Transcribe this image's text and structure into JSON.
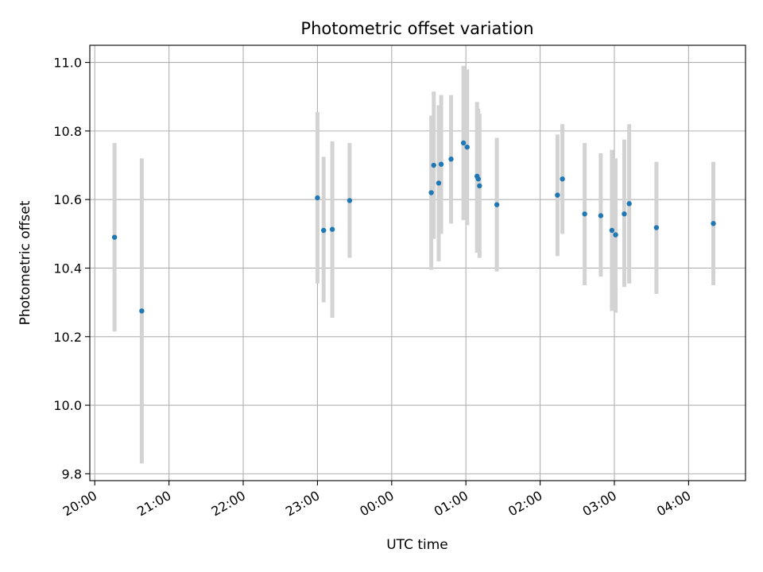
{
  "chart_data": {
    "type": "scatter",
    "title": "Photometric offset variation",
    "xlabel": "UTC time",
    "ylabel": "Photometric offset",
    "x_axis": {
      "ticks": [
        "20:00",
        "21:00",
        "22:00",
        "23:00",
        "00:00",
        "01:00",
        "02:00",
        "03:00",
        "04:00"
      ],
      "range": [
        "19:56",
        "04:46"
      ]
    },
    "y_axis": {
      "ticks": [
        "9.8",
        "10.0",
        "10.2",
        "10.4",
        "10.6",
        "10.8",
        "11.0"
      ],
      "range": [
        9.78,
        11.05
      ]
    },
    "grid": true,
    "colors": {
      "point": "#1f77b4",
      "errorbar": "#d3d3d3"
    },
    "points": [
      {
        "t": "20:16",
        "y": 10.49,
        "lo": 10.215,
        "hi": 10.765
      },
      {
        "t": "20:38",
        "y": 10.275,
        "lo": 9.83,
        "hi": 10.72
      },
      {
        "t": "23:00",
        "y": 10.605,
        "lo": 10.355,
        "hi": 10.855
      },
      {
        "t": "23:05",
        "y": 10.51,
        "lo": 10.3,
        "hi": 10.725
      },
      {
        "t": "23:12",
        "y": 10.513,
        "lo": 10.255,
        "hi": 10.77
      },
      {
        "t": "23:26",
        "y": 10.597,
        "lo": 10.43,
        "hi": 10.765
      },
      {
        "t": "00:32",
        "y": 10.62,
        "lo": 10.395,
        "hi": 10.845
      },
      {
        "t": "00:34",
        "y": 10.7,
        "lo": 10.485,
        "hi": 10.915
      },
      {
        "t": "00:38",
        "y": 10.648,
        "lo": 10.42,
        "hi": 10.875
      },
      {
        "t": "00:40",
        "y": 10.703,
        "lo": 10.5,
        "hi": 10.905
      },
      {
        "t": "00:48",
        "y": 10.718,
        "lo": 10.53,
        "hi": 10.905
      },
      {
        "t": "00:58",
        "y": 10.765,
        "lo": 10.54,
        "hi": 10.99
      },
      {
        "t": "01:01",
        "y": 10.753,
        "lo": 10.525,
        "hi": 10.98
      },
      {
        "t": "01:09",
        "y": 10.668,
        "lo": 10.445,
        "hi": 10.885
      },
      {
        "t": "01:10",
        "y": 10.66,
        "lo": 10.455,
        "hi": 10.865
      },
      {
        "t": "01:11",
        "y": 10.64,
        "lo": 10.43,
        "hi": 10.85
      },
      {
        "t": "01:25",
        "y": 10.585,
        "lo": 10.39,
        "hi": 10.78
      },
      {
        "t": "02:14",
        "y": 10.613,
        "lo": 10.435,
        "hi": 10.79
      },
      {
        "t": "02:18",
        "y": 10.66,
        "lo": 10.5,
        "hi": 10.82
      },
      {
        "t": "02:36",
        "y": 10.558,
        "lo": 10.35,
        "hi": 10.765
      },
      {
        "t": "02:49",
        "y": 10.553,
        "lo": 10.375,
        "hi": 10.735
      },
      {
        "t": "02:58",
        "y": 10.51,
        "lo": 10.275,
        "hi": 10.745
      },
      {
        "t": "03:01",
        "y": 10.497,
        "lo": 10.27,
        "hi": 10.72
      },
      {
        "t": "03:08",
        "y": 10.558,
        "lo": 10.345,
        "hi": 10.775
      },
      {
        "t": "03:12",
        "y": 10.588,
        "lo": 10.355,
        "hi": 10.82
      },
      {
        "t": "03:34",
        "y": 10.518,
        "lo": 10.325,
        "hi": 10.71
      },
      {
        "t": "04:20",
        "y": 10.53,
        "lo": 10.35,
        "hi": 10.71
      }
    ]
  }
}
